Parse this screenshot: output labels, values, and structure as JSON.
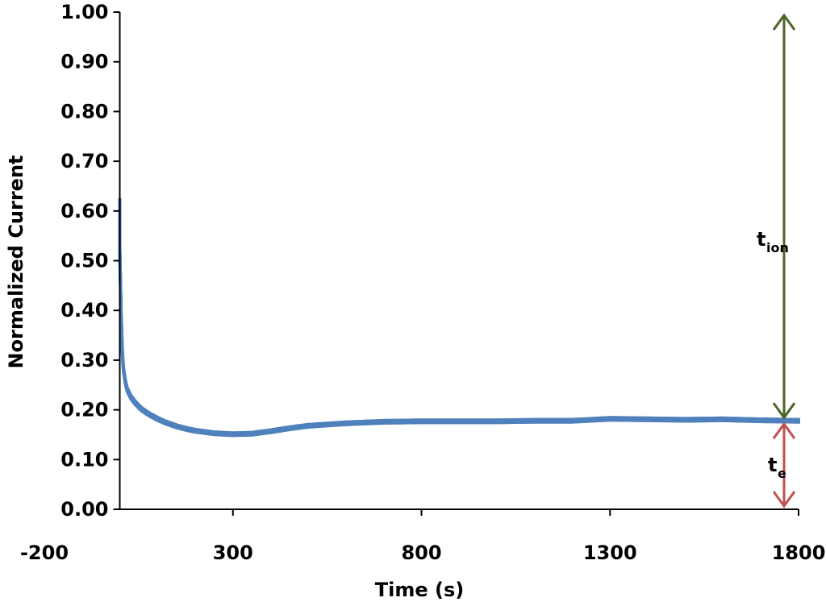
{
  "chart_data": {
    "type": "scatter",
    "title": "",
    "xlabel": "Time (s)",
    "ylabel": "Normalized Current",
    "xlim": [
      -200,
      1800
    ],
    "ylim": [
      0,
      1.0
    ],
    "x_ticks": [
      "-200",
      "300",
      "800",
      "1300",
      "1800"
    ],
    "y_ticks": [
      "0.00",
      "0.10",
      "0.20",
      "0.30",
      "0.40",
      "0.50",
      "0.60",
      "0.70",
      "0.80",
      "0.90",
      "1.00"
    ],
    "grid": false,
    "legend": "none",
    "series": [
      {
        "color": "#4f81bd",
        "points": [
          [
            0,
            0.62
          ],
          [
            0,
            0.52
          ],
          [
            2,
            0.45
          ],
          [
            3,
            0.4
          ],
          [
            5,
            0.36
          ],
          [
            6,
            0.33
          ],
          [
            8,
            0.3
          ],
          [
            10,
            0.28
          ],
          [
            15,
            0.255
          ],
          [
            20,
            0.24
          ],
          [
            30,
            0.225
          ],
          [
            40,
            0.215
          ],
          [
            50,
            0.207
          ],
          [
            60,
            0.2
          ],
          [
            80,
            0.19
          ],
          [
            100,
            0.182
          ],
          [
            120,
            0.175
          ],
          [
            150,
            0.167
          ],
          [
            180,
            0.161
          ],
          [
            200,
            0.158
          ],
          [
            250,
            0.153
          ],
          [
            300,
            0.151
          ],
          [
            350,
            0.152
          ],
          [
            400,
            0.157
          ],
          [
            450,
            0.163
          ],
          [
            500,
            0.168
          ],
          [
            600,
            0.173
          ],
          [
            700,
            0.176
          ],
          [
            800,
            0.177
          ],
          [
            900,
            0.177
          ],
          [
            1000,
            0.177
          ],
          [
            1100,
            0.178
          ],
          [
            1200,
            0.178
          ],
          [
            1300,
            0.182
          ],
          [
            1400,
            0.181
          ],
          [
            1500,
            0.18
          ],
          [
            1600,
            0.181
          ],
          [
            1700,
            0.179
          ],
          [
            1800,
            0.178
          ]
        ]
      }
    ],
    "annotations": [
      {
        "main": "t",
        "sub": "ion",
        "color": "#4f6228",
        "y_from": 0.178,
        "y_to": 1.0
      },
      {
        "main": "t",
        "sub": "e",
        "color": "#c0504d",
        "y_from": 0.0,
        "y_to": 0.178
      }
    ]
  }
}
